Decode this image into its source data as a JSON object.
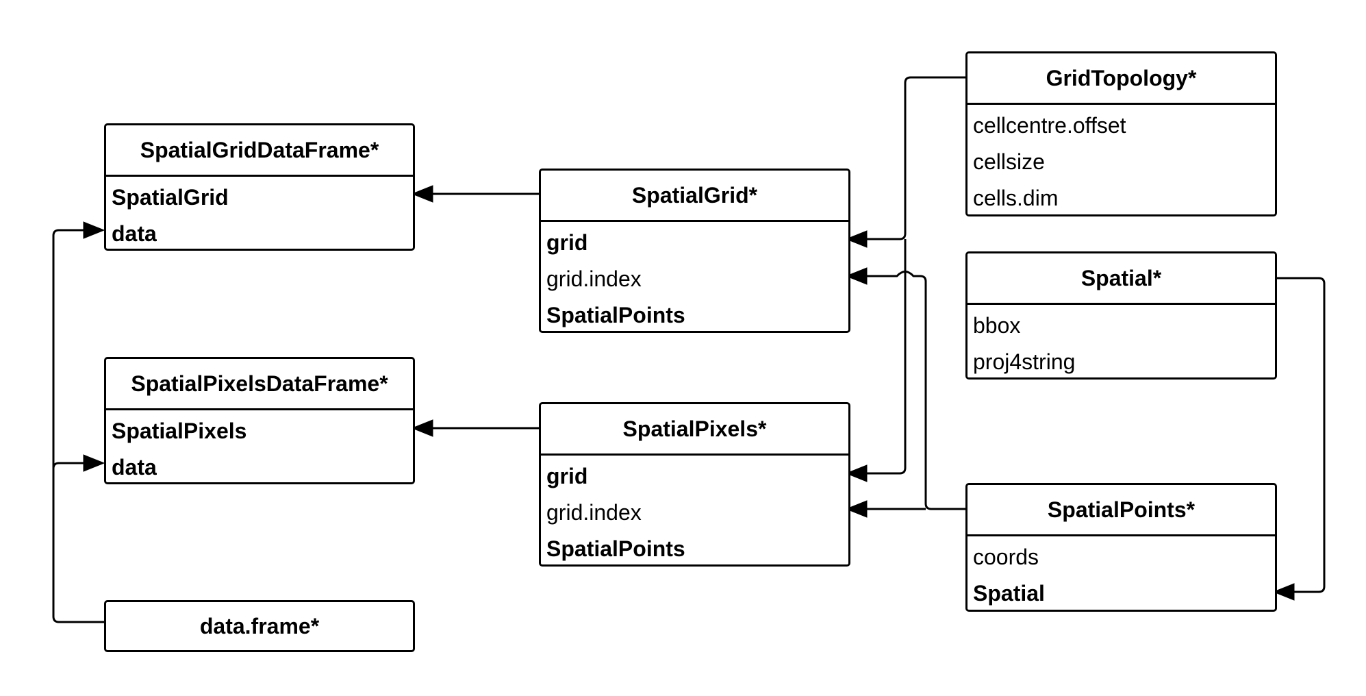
{
  "classes": {
    "spatial_grid_data_frame": {
      "title": "SpatialGridDataFrame*",
      "fields": [
        "SpatialGrid",
        "data"
      ]
    },
    "spatial_pixels_data_frame": {
      "title": "SpatialPixelsDataFrame*",
      "fields": [
        "SpatialPixels",
        "data"
      ]
    },
    "data_frame": {
      "title": "data.frame*"
    },
    "spatial_grid": {
      "title": "SpatialGrid*",
      "fields": [
        "grid",
        "grid.index",
        "SpatialPoints"
      ]
    },
    "spatial_pixels": {
      "title": "SpatialPixels*",
      "fields": [
        "grid",
        "grid.index",
        "SpatialPoints"
      ]
    },
    "grid_topology": {
      "title": "GridTopology*",
      "fields": [
        "cellcentre.offset",
        "cellsize",
        "cells.dim"
      ]
    },
    "spatial": {
      "title": "Spatial*",
      "fields": [
        "bbox",
        "proj4string"
      ]
    },
    "spatial_points": {
      "title": "SpatialPoints*",
      "fields": [
        "coords",
        "Spatial"
      ]
    }
  }
}
